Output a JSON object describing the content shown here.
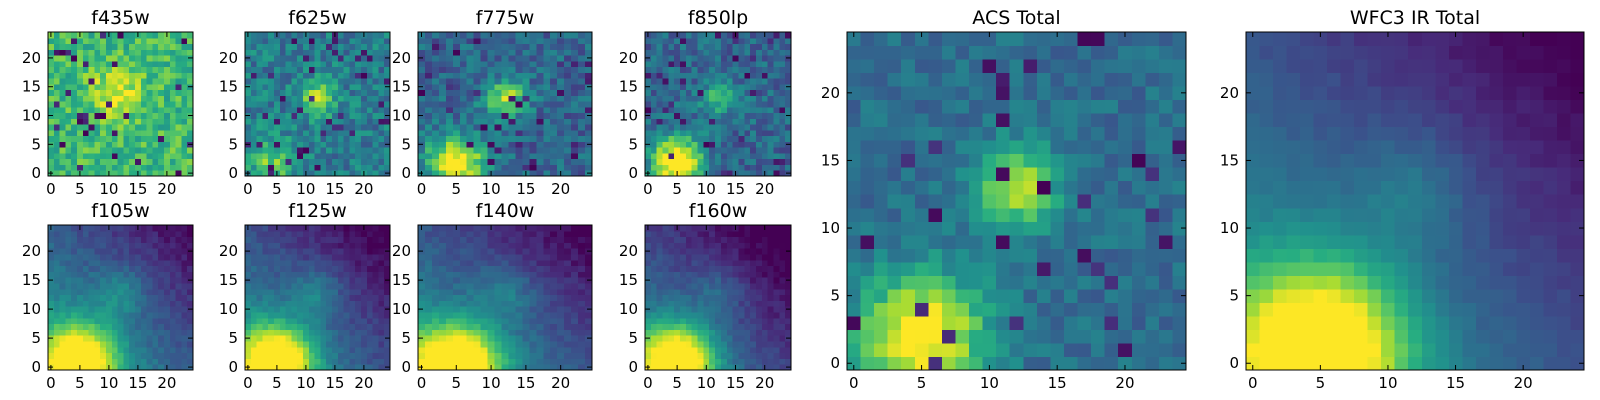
{
  "figure": {
    "colormap": "viridis",
    "colormap_stops": [
      "#440154",
      "#472c7a",
      "#3b518b",
      "#2c718e",
      "#21908d",
      "#27ad81",
      "#5cc863",
      "#aadc32",
      "#fde725"
    ],
    "axis_color": "#000000",
    "background": "#ffffff"
  },
  "chart_data": [
    {
      "type": "heatmap",
      "title": "f435w",
      "grid_size": 25,
      "xlim": [
        0,
        24
      ],
      "ylim": [
        0,
        24
      ],
      "xticks": [
        "0",
        "5",
        "10",
        "15",
        "20"
      ],
      "yticks": [
        "0",
        "5",
        "10",
        "15",
        "20"
      ],
      "features": [
        {
          "x": 11,
          "y": 14,
          "amplitude": 0.3,
          "sigma": 3
        }
      ],
      "baseline": 0.68,
      "noise": 0.3,
      "dark_fraction": 0.05,
      "gamma": 1.0,
      "seed": 11
    },
    {
      "type": "heatmap",
      "title": "f625w",
      "grid_size": 25,
      "xlim": [
        0,
        24
      ],
      "ylim": [
        0,
        24
      ],
      "xticks": [
        "0",
        "5",
        "10",
        "15",
        "20"
      ],
      "yticks": [
        "0",
        "5",
        "10",
        "15",
        "20"
      ],
      "features": [
        {
          "x": 12,
          "y": 13,
          "amplitude": 0.45,
          "sigma": 2.2
        },
        {
          "x": 4,
          "y": 2,
          "amplitude": 0.35,
          "sigma": 3
        }
      ],
      "baseline": 0.42,
      "noise": 0.3,
      "dark_fraction": 0.06,
      "gamma": 1.0,
      "seed": 23
    },
    {
      "type": "heatmap",
      "title": "f775w",
      "grid_size": 25,
      "xlim": [
        0,
        24
      ],
      "ylim": [
        0,
        24
      ],
      "xticks": [
        "0",
        "5",
        "10",
        "15",
        "20"
      ],
      "yticks": [
        "0",
        "5",
        "10",
        "15",
        "20"
      ],
      "features": [
        {
          "x": 12,
          "y": 13,
          "amplitude": 0.55,
          "sigma": 2.2
        },
        {
          "x": 5,
          "y": 2,
          "amplitude": 0.75,
          "sigma": 3
        }
      ],
      "baseline": 0.33,
      "noise": 0.28,
      "dark_fraction": 0.05,
      "gamma": 1.0,
      "seed": 37
    },
    {
      "type": "heatmap",
      "title": "f850lp",
      "grid_size": 25,
      "xlim": [
        0,
        24
      ],
      "ylim": [
        0,
        24
      ],
      "xticks": [
        "0",
        "5",
        "10",
        "15",
        "20"
      ],
      "yticks": [
        "0",
        "5",
        "10",
        "15",
        "20"
      ],
      "features": [
        {
          "x": 12,
          "y": 13,
          "amplitude": 0.35,
          "sigma": 2.2
        },
        {
          "x": 5,
          "y": 2,
          "amplitude": 0.85,
          "sigma": 3
        }
      ],
      "baseline": 0.33,
      "noise": 0.28,
      "dark_fraction": 0.05,
      "gamma": 1.0,
      "seed": 41
    },
    {
      "type": "heatmap",
      "title": "f105w",
      "grid_size": 25,
      "xlim": [
        0,
        24
      ],
      "ylim": [
        0,
        24
      ],
      "xticks": [
        "0",
        "5",
        "10",
        "15",
        "20"
      ],
      "yticks": [
        "0",
        "5",
        "10",
        "15",
        "20"
      ],
      "features": [
        {
          "x": 5,
          "y": 1,
          "amplitude": 0.8,
          "sigma": 4.5
        },
        {
          "x": 12,
          "y": 13,
          "amplitude": 0.2,
          "sigma": 3
        }
      ],
      "baseline": 0.3,
      "noise": 0.1,
      "dark_fraction": 0.0,
      "gradient": -0.012,
      "gamma": 1.0,
      "seed": 53
    },
    {
      "type": "heatmap",
      "title": "f125w",
      "grid_size": 25,
      "xlim": [
        0,
        24
      ],
      "ylim": [
        0,
        24
      ],
      "xticks": [
        "0",
        "5",
        "10",
        "15",
        "20"
      ],
      "yticks": [
        "0",
        "5",
        "10",
        "15",
        "20"
      ],
      "features": [
        {
          "x": 5,
          "y": 1,
          "amplitude": 0.85,
          "sigma": 4.5
        },
        {
          "x": 12,
          "y": 13,
          "amplitude": 0.2,
          "sigma": 3
        }
      ],
      "baseline": 0.25,
      "noise": 0.1,
      "dark_fraction": 0.0,
      "gradient": -0.012,
      "gamma": 1.0,
      "seed": 67
    },
    {
      "type": "heatmap",
      "title": "f140w",
      "grid_size": 25,
      "xlim": [
        0,
        24
      ],
      "ylim": [
        0,
        24
      ],
      "xticks": [
        "0",
        "5",
        "10",
        "15",
        "20"
      ],
      "yticks": [
        "0",
        "5",
        "10",
        "15",
        "20"
      ],
      "features": [
        {
          "x": 5,
          "y": 1,
          "amplitude": 0.85,
          "sigma": 4.5
        },
        {
          "x": 12,
          "y": 13,
          "amplitude": 0.18,
          "sigma": 3
        }
      ],
      "baseline": 0.27,
      "noise": 0.1,
      "dark_fraction": 0.0,
      "gradient": -0.012,
      "gamma": 1.0,
      "seed": 71
    },
    {
      "type": "heatmap",
      "title": "f160w",
      "grid_size": 25,
      "xlim": [
        0,
        24
      ],
      "ylim": [
        0,
        24
      ],
      "xticks": [
        "0",
        "5",
        "10",
        "15",
        "20"
      ],
      "yticks": [
        "0",
        "5",
        "10",
        "15",
        "20"
      ],
      "features": [
        {
          "x": 5,
          "y": 1,
          "amplitude": 0.9,
          "sigma": 4.5
        },
        {
          "x": 12,
          "y": 13,
          "amplitude": 0.15,
          "sigma": 3
        }
      ],
      "baseline": 0.2,
      "noise": 0.1,
      "dark_fraction": 0.0,
      "gradient": -0.012,
      "gamma": 1.0,
      "seed": 83
    },
    {
      "type": "heatmap",
      "title": "ACS Total",
      "grid_size": 25,
      "xlim": [
        0,
        24
      ],
      "ylim": [
        0,
        24
      ],
      "xticks": [
        "0",
        "5",
        "10",
        "15",
        "20"
      ],
      "yticks": [
        "0",
        "5",
        "10",
        "15",
        "20"
      ],
      "features": [
        {
          "x": 12,
          "y": 13,
          "amplitude": 0.55,
          "sigma": 2.2
        },
        {
          "x": 5,
          "y": 2,
          "amplitude": 0.7,
          "sigma": 3.3
        }
      ],
      "baseline": 0.36,
      "noise": 0.18,
      "dark_fraction": 0.05,
      "gamma": 1.0,
      "seed": 97
    },
    {
      "type": "heatmap",
      "title": "WFC3 IR Total",
      "grid_size": 25,
      "xlim": [
        0,
        24
      ],
      "ylim": [
        0,
        24
      ],
      "xticks": [
        "0",
        "5",
        "10",
        "15",
        "20"
      ],
      "yticks": [
        "0",
        "5",
        "10",
        "15",
        "20"
      ],
      "features": [
        {
          "x": 5,
          "y": 1,
          "amplitude": 0.85,
          "sigma": 4.5
        },
        {
          "x": 12,
          "y": 13,
          "amplitude": 0.15,
          "sigma": 3
        }
      ],
      "baseline": 0.26,
      "noise": 0.05,
      "dark_fraction": 0.0,
      "gradient": -0.012,
      "gamma": 1.0,
      "seed": 101
    }
  ]
}
